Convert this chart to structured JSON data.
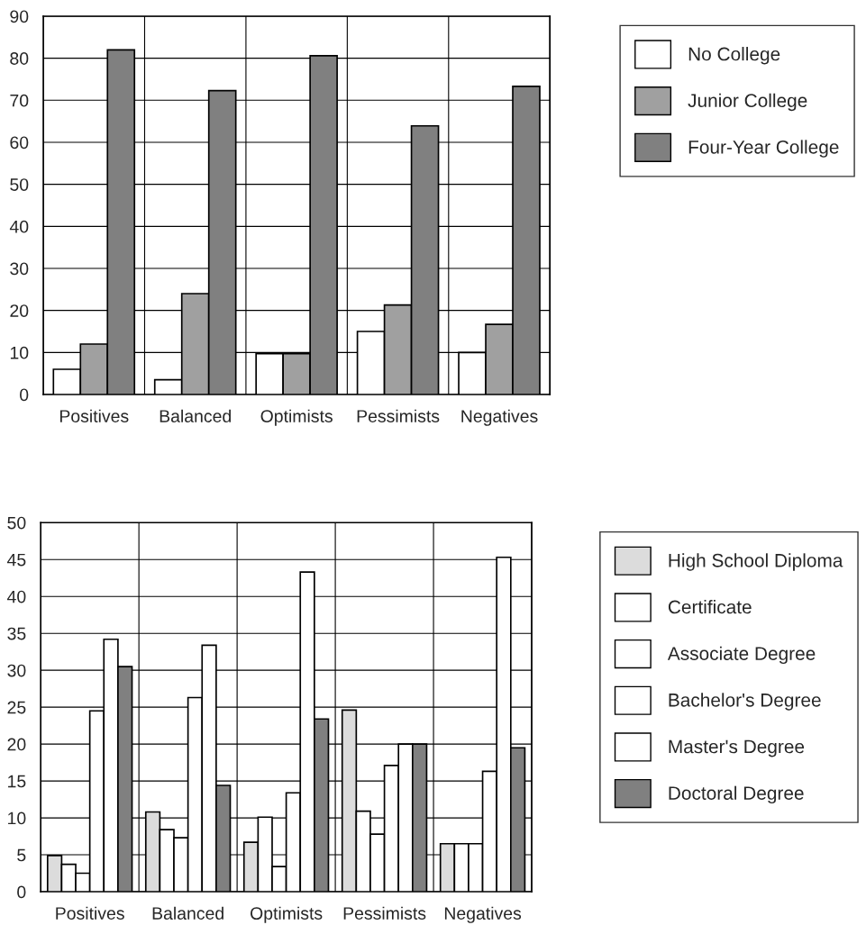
{
  "chart_data": [
    {
      "type": "bar",
      "categories": [
        "Positives",
        "Balanced",
        "Optimists",
        "Pessimists",
        "Negatives"
      ],
      "series": [
        {
          "name": "No College",
          "color": "#ffffff",
          "values": [
            6,
            3.5,
            9.7,
            15,
            10
          ]
        },
        {
          "name": "Junior College",
          "color": "#a0a0a0",
          "values": [
            12,
            24,
            9.7,
            21.3,
            16.7
          ]
        },
        {
          "name": "Four-Year College",
          "color": "#808080",
          "values": [
            82,
            72.3,
            80.6,
            63.9,
            73.3
          ]
        }
      ],
      "ylim": [
        0,
        90
      ],
      "yticks": [
        0,
        10,
        20,
        30,
        40,
        50,
        60,
        70,
        80,
        90
      ],
      "grid": true,
      "legend": "right"
    },
    {
      "type": "bar",
      "categories": [
        "Positives",
        "Balanced",
        "Optimists",
        "Pessimists",
        "Negatives"
      ],
      "series": [
        {
          "name": "High School Diploma",
          "color": "#dcdcdc",
          "values": [
            4.9,
            10.8,
            6.7,
            24.6,
            6.5
          ]
        },
        {
          "name": "Certificate",
          "color": "#ffffff",
          "values": [
            3.7,
            8.4,
            10.1,
            10.9,
            6.5
          ]
        },
        {
          "name": "Associate Degree",
          "color": "#ffffff",
          "values": [
            2.5,
            7.3,
            3.4,
            7.8,
            6.5
          ]
        },
        {
          "name": "Bachelor's Degree",
          "color": "#ffffff",
          "values": [
            24.5,
            26.3,
            13.4,
            17.1,
            16.3
          ]
        },
        {
          "name": "Master's Degree",
          "color": "#ffffff",
          "values": [
            34.2,
            33.4,
            43.3,
            20,
            45.3
          ]
        },
        {
          "name": "Doctoral Degree",
          "color": "#808080",
          "values": [
            30.5,
            14.4,
            23.4,
            20,
            19.5
          ]
        }
      ],
      "ylim": [
        0,
        50
      ],
      "yticks": [
        0,
        5,
        10,
        15,
        20,
        25,
        30,
        35,
        40,
        45,
        50
      ],
      "grid": true,
      "legend": "right"
    }
  ]
}
